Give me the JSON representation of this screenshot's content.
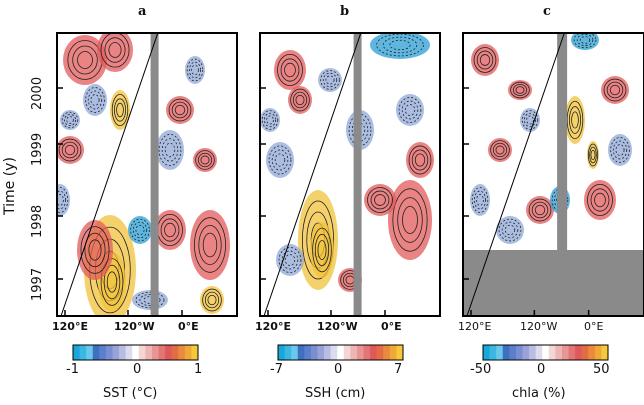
{
  "chart_data": [
    {
      "type": "heatmap",
      "panel": "a",
      "title": "a",
      "ylabel": "Time (y)",
      "yticks": [
        "1997",
        "1998",
        "1999",
        "2000"
      ],
      "xticks": [
        "120°E",
        "120°W",
        "0°E"
      ],
      "colorbar": {
        "label": "SST (°C)",
        "ticks": [
          "-1",
          "0",
          "1"
        ],
        "range": [
          -1,
          1
        ]
      },
      "contours": true,
      "masked_column": true
    },
    {
      "type": "heatmap",
      "panel": "b",
      "title": "b",
      "xticks": [
        "120°E",
        "120°W",
        "0°E"
      ],
      "colorbar": {
        "label": "SSH (cm)",
        "ticks": [
          "-7",
          "0",
          "7"
        ],
        "range": [
          -7,
          7
        ]
      },
      "contours": true,
      "masked_column": true
    },
    {
      "type": "heatmap",
      "panel": "c",
      "title": "c",
      "xticks": [
        "120°E",
        "120°W",
        "0°E"
      ],
      "colorbar": {
        "label": "chla (%)",
        "ticks": [
          "-50",
          "0",
          "50"
        ],
        "range": [
          -50,
          50
        ]
      },
      "contours": true,
      "masked_column": true,
      "masked_bottom": true
    }
  ],
  "colors": {
    "cold": "#2a9fd6",
    "cool": "#8fa8d8",
    "neutral": "#ffffff",
    "warm": "#e35a5a",
    "hot": "#f2c23a",
    "mask": "#8a8a8a"
  }
}
